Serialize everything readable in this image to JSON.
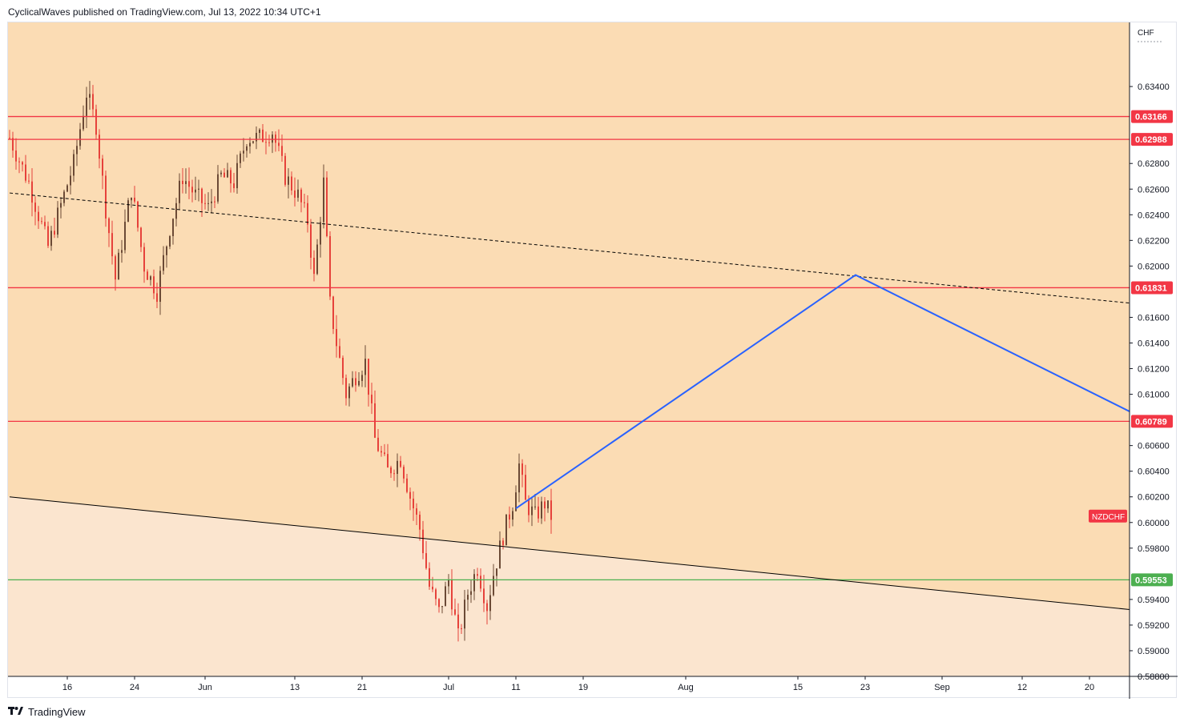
{
  "header": {
    "published": "CyclicalWaves published on TradingView.com, Jul 13, 2022 10:34 UTC+1"
  },
  "footer": {
    "logo_icon": "tradingview-logo-icon",
    "brand": "TradingView"
  },
  "colors": {
    "bg_upper": "#fbdcb4",
    "bg_lower": "#fbe5cf",
    "candle": "#6b4a36",
    "candle_red": "#e6423b",
    "level_red": "#f23645",
    "level_green": "#4caf50",
    "projection_blue": "#2962ff",
    "trendline": "#000000",
    "symbol_badge": "#f23645"
  },
  "chart_data": {
    "type": "candlestick",
    "symbol": "NZDCHF",
    "currency": "CHF",
    "ylim": [
      0.588,
      0.639
    ],
    "y_ticks": [
      "0.63400",
      "0.62800",
      "0.62600",
      "0.62400",
      "0.62200",
      "0.62000",
      "0.61600",
      "0.61400",
      "0.61200",
      "0.61000",
      "0.60600",
      "0.60400",
      "0.60200",
      "0.60000",
      "0.59800",
      "0.59400",
      "0.59200",
      "0.59000",
      "0.58800"
    ],
    "x_ticks": [
      {
        "label": "16",
        "bar": 18
      },
      {
        "label": "24",
        "bar": 39
      },
      {
        "label": "Jun",
        "bar": 61
      },
      {
        "label": "13",
        "bar": 89
      },
      {
        "label": "21",
        "bar": 110
      },
      {
        "label": "Jul",
        "bar": 137
      },
      {
        "label": "11",
        "bar": 158
      },
      {
        "label": "19",
        "bar": 179
      },
      {
        "label": "Aug",
        "bar": 211
      },
      {
        "label": "15",
        "bar": 246
      },
      {
        "label": "23",
        "bar": 267
      },
      {
        "label": "Sep",
        "bar": 291
      },
      {
        "label": "12",
        "bar": 316
      },
      {
        "label": "20",
        "bar": 337
      }
    ],
    "horizontal_levels": [
      {
        "value": 0.63166,
        "label": "0.63166",
        "color": "#f23645"
      },
      {
        "value": 0.62988,
        "label": "0.62988",
        "color": "#f23645"
      },
      {
        "value": 0.61831,
        "label": "0.61831",
        "color": "#f23645"
      },
      {
        "value": 0.60789,
        "label": "0.60789",
        "color": "#f23645"
      },
      {
        "value": 0.59553,
        "label": "0.59553",
        "color": "#4caf50"
      }
    ],
    "trendlines": [
      {
        "style": "dashed",
        "from": {
          "bar": 0,
          "value": 0.6257
        },
        "to": {
          "bar": 350,
          "value": 0.6171
        }
      },
      {
        "style": "solid",
        "from": {
          "bar": 0,
          "value": 0.602
        },
        "to": {
          "bar": 350,
          "value": 0.5932
        }
      }
    ],
    "projection": [
      {
        "bar": 158,
        "value": 0.6011
      },
      {
        "bar": 264,
        "value": 0.6193
      },
      {
        "bar": 350,
        "value": 0.6086
      }
    ],
    "path": [
      [
        0,
        0.63
      ],
      [
        6,
        0.6265
      ],
      [
        12,
        0.6215
      ],
      [
        20,
        0.628
      ],
      [
        24,
        0.6335
      ],
      [
        27,
        0.631
      ],
      [
        30,
        0.6245
      ],
      [
        33,
        0.619
      ],
      [
        38,
        0.626
      ],
      [
        42,
        0.62
      ],
      [
        46,
        0.618
      ],
      [
        50,
        0.623
      ],
      [
        54,
        0.627
      ],
      [
        58,
        0.6255
      ],
      [
        62,
        0.6245
      ],
      [
        66,
        0.627
      ],
      [
        70,
        0.6265
      ],
      [
        74,
        0.63
      ],
      [
        78,
        0.63
      ],
      [
        82,
        0.6305
      ],
      [
        86,
        0.627
      ],
      [
        90,
        0.6255
      ],
      [
        93,
        0.6235
      ],
      [
        95,
        0.619
      ],
      [
        98,
        0.6265
      ],
      [
        100,
        0.617
      ],
      [
        102,
        0.614
      ],
      [
        105,
        0.61
      ],
      [
        108,
        0.6115
      ],
      [
        111,
        0.6125
      ],
      [
        114,
        0.6065
      ],
      [
        118,
        0.604
      ],
      [
        122,
        0.605
      ],
      [
        125,
        0.602
      ],
      [
        128,
        0.5995
      ],
      [
        131,
        0.595
      ],
      [
        134,
        0.593
      ],
      [
        137,
        0.5955
      ],
      [
        140,
        0.591
      ],
      [
        143,
        0.5945
      ],
      [
        146,
        0.5965
      ],
      [
        149,
        0.5935
      ],
      [
        151,
        0.596
      ],
      [
        154,
        0.599
      ],
      [
        157,
        0.6015
      ],
      [
        159,
        0.6045
      ],
      [
        161,
        0.6015
      ],
      [
        164,
        0.6005
      ],
      [
        167,
        0.6015
      ],
      [
        169,
        0.6005
      ]
    ]
  }
}
